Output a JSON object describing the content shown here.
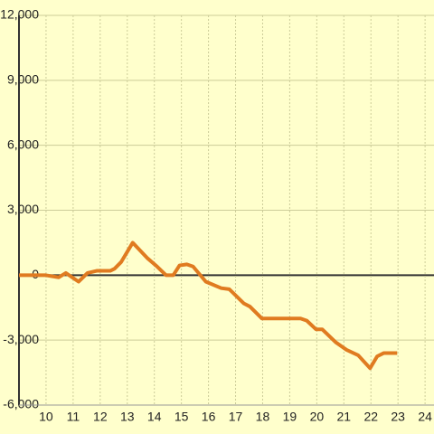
{
  "chart_data": {
    "type": "line",
    "x": [
      9.0,
      9.97,
      10.47,
      10.73,
      11.2,
      11.53,
      11.87,
      12.37,
      12.53,
      12.77,
      13.2,
      13.73,
      14.1,
      14.43,
      14.7,
      14.93,
      15.2,
      15.43,
      15.9,
      16.47,
      16.77,
      17.3,
      17.53,
      17.97,
      19.4,
      19.63,
      19.97,
      20.2,
      20.7,
      21.1,
      21.53,
      21.97,
      22.23,
      22.47,
      22.97
    ],
    "series": [
      {
        "color": "#e07b20",
        "values": [
          0,
          0,
          -100,
          100,
          -300,
          100,
          200,
          200,
          300,
          600,
          1500,
          800,
          400,
          0,
          0,
          450,
          500,
          400,
          -300,
          -600,
          -650,
          -1300,
          -1450,
          -2000,
          -2000,
          -2100,
          -2500,
          -2500,
          -3100,
          -3450,
          -3700,
          -4300,
          -3750,
          -3600,
          -3600
        ]
      }
    ],
    "xlim": [
      9,
      24.33
    ],
    "xticks": [
      10,
      11,
      12,
      13,
      14,
      15,
      16,
      17,
      18,
      19,
      20,
      21,
      22,
      23,
      24
    ],
    "ylim": [
      -6000,
      12000
    ],
    "yticks": [
      {
        "value": -6000,
        "label": "-6,000"
      },
      {
        "value": -3000,
        "label": "-3,000"
      },
      0,
      {
        "value": 3000,
        "label": "3,000"
      },
      {
        "value": 6000,
        "label": "6,000"
      },
      {
        "value": 9000,
        "label": "9,000"
      },
      {
        "value": 12000,
        "label": "12,000"
      }
    ],
    "grid": true
  }
}
